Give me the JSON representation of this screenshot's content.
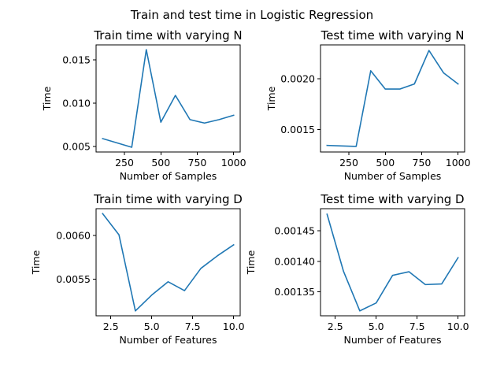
{
  "suptitle": "Train and test time in Logistic Regression",
  "chart_data": [
    {
      "type": "line",
      "title": "Train time with varying N",
      "xlabel": "Number of Samples",
      "ylabel": "Time",
      "x": [
        100,
        200,
        300,
        400,
        500,
        600,
        700,
        800,
        900,
        1000
      ],
      "series": [
        {
          "values": [
            0.0059,
            0.0054,
            0.0049,
            0.0162,
            0.0078,
            0.0109,
            0.0081,
            0.0077,
            0.0081,
            0.0086
          ],
          "color": "#1f77b4"
        }
      ],
      "xlim": [
        55,
        1045
      ],
      "ylim": [
        0.00435,
        0.01675
      ],
      "xticks": [
        250,
        500,
        750,
        1000
      ],
      "xticklabels": [
        "250",
        "500",
        "750",
        "1000"
      ],
      "yticks": [
        0.005,
        0.01,
        0.015
      ],
      "yticklabels": [
        "0.005",
        "0.010",
        "0.015"
      ]
    },
    {
      "type": "line",
      "title": "Test time with varying N",
      "xlabel": "Number of Samples",
      "ylabel": "Time",
      "x": [
        100,
        200,
        300,
        400,
        500,
        600,
        700,
        800,
        900,
        1000
      ],
      "series": [
        {
          "values": [
            0.001345,
            0.00134,
            0.001335,
            0.00208,
            0.0019,
            0.0019,
            0.00195,
            0.00228,
            0.00206,
            0.00195
          ],
          "color": "#1f77b4"
        }
      ],
      "xlim": [
        55,
        1045
      ],
      "ylim": [
        0.00128,
        0.002335
      ],
      "xticks": [
        250,
        500,
        750,
        1000
      ],
      "xticklabels": [
        "250",
        "500",
        "750",
        "1000"
      ],
      "yticks": [
        0.0015,
        0.002
      ],
      "yticklabels": [
        "0.0015",
        "0.0020"
      ]
    },
    {
      "type": "line",
      "title": "Train time with varying D",
      "xlabel": "Number of Features",
      "ylabel": "Time",
      "x": [
        2,
        3,
        4,
        5,
        6,
        7,
        8,
        9,
        10
      ],
      "series": [
        {
          "values": [
            0.006253,
            0.006008,
            0.005132,
            0.005315,
            0.005468,
            0.005366,
            0.005622,
            0.005766,
            0.005894
          ],
          "color": "#1f77b4"
        }
      ],
      "xlim": [
        1.6,
        10.4
      ],
      "ylim": [
        0.005076,
        0.00631
      ],
      "xticks": [
        2.5,
        5.0,
        7.5,
        10.0
      ],
      "xticklabels": [
        "2.5",
        "5.0",
        "7.5",
        "10.0"
      ],
      "yticks": [
        0.0055,
        0.006
      ],
      "yticklabels": [
        "0.0055",
        "0.0060"
      ]
    },
    {
      "type": "line",
      "title": "Test time with varying D",
      "xlabel": "Number of Features",
      "ylabel": "Time",
      "x": [
        2,
        3,
        4,
        5,
        6,
        7,
        8,
        9,
        10
      ],
      "series": [
        {
          "values": [
            0.001477,
            0.001384,
            0.001319,
            0.001332,
            0.001377,
            0.001383,
            0.001362,
            0.001363,
            0.001406
          ],
          "color": "#1f77b4"
        }
      ],
      "xlim": [
        1.6,
        10.4
      ],
      "ylim": [
        0.001311,
        0.001486
      ],
      "xticks": [
        2.5,
        5.0,
        7.5,
        10.0
      ],
      "xticklabels": [
        "2.5",
        "5.0",
        "7.5",
        "10.0"
      ],
      "yticks": [
        0.00135,
        0.0014,
        0.00145
      ],
      "yticklabels": [
        "0.00135",
        "0.00140",
        "0.00145"
      ]
    }
  ]
}
